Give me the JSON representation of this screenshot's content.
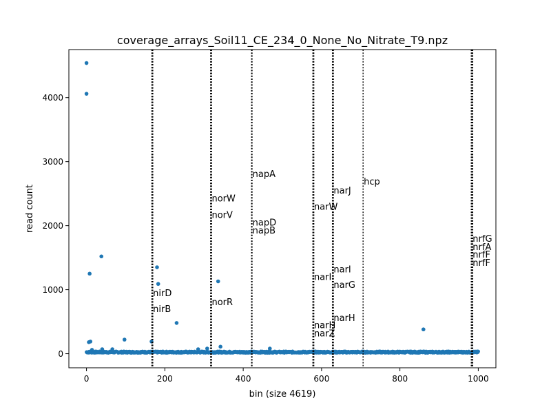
{
  "chart_data": {
    "type": "scatter",
    "title": "coverage_arrays_Soil11_CE_234_0_None_No_Nitrate_T9.npz",
    "xlabel": "bin (size 4619)",
    "ylabel": "read count",
    "xlim": [
      -45,
      1045
    ],
    "ylim": [
      -220,
      4750
    ],
    "xticks": [
      0,
      200,
      400,
      600,
      800,
      1000
    ],
    "yticks": [
      0,
      1000,
      2000,
      3000,
      4000
    ],
    "grid": false,
    "marker_color": "#1f77b4",
    "baseline": {
      "x_start": 0,
      "x_end": 1000,
      "y_mean": 25,
      "y_jitter": 12
    },
    "points": [
      [
        0,
        4540
      ],
      [
        0,
        4060
      ],
      [
        6,
        180
      ],
      [
        8,
        1250
      ],
      [
        10,
        190
      ],
      [
        14,
        60
      ],
      [
        38,
        1520
      ],
      [
        40,
        70
      ],
      [
        66,
        70
      ],
      [
        97,
        220
      ],
      [
        166,
        190
      ],
      [
        180,
        1350
      ],
      [
        183,
        1090
      ],
      [
        230,
        480
      ],
      [
        285,
        70
      ],
      [
        308,
        80
      ],
      [
        336,
        1130
      ],
      [
        342,
        110
      ],
      [
        468,
        80
      ],
      [
        860,
        380
      ]
    ],
    "markers": [
      {
        "x": 168,
        "lines": 3
      },
      {
        "x": 318,
        "lines": 3
      },
      {
        "x": 422,
        "lines": 2
      },
      {
        "x": 579,
        "lines": 3
      },
      {
        "x": 629,
        "lines": 3
      },
      {
        "x": 706,
        "lines": 1
      },
      {
        "x": 984,
        "lines": 4
      }
    ],
    "annotations": [
      {
        "text": "nirD",
        "x": 168,
        "y": 900
      },
      {
        "text": "nirB",
        "x": 168,
        "y": 650
      },
      {
        "text": "norW",
        "x": 318,
        "y": 2380
      },
      {
        "text": "norV",
        "x": 318,
        "y": 2120
      },
      {
        "text": "norR",
        "x": 318,
        "y": 760
      },
      {
        "text": "napA",
        "x": 422,
        "y": 2760
      },
      {
        "text": "napD",
        "x": 422,
        "y": 2000
      },
      {
        "text": "napB",
        "x": 422,
        "y": 1880
      },
      {
        "text": "narW",
        "x": 579,
        "y": 2250
      },
      {
        "text": "narI",
        "x": 579,
        "y": 1150
      },
      {
        "text": "narH",
        "x": 579,
        "y": 400
      },
      {
        "text": "narZ",
        "x": 579,
        "y": 270
      },
      {
        "text": "narJ",
        "x": 629,
        "y": 2500
      },
      {
        "text": "narI",
        "x": 629,
        "y": 1270
      },
      {
        "text": "narG",
        "x": 629,
        "y": 1030
      },
      {
        "text": "narH",
        "x": 629,
        "y": 510
      },
      {
        "text": "hcp",
        "x": 706,
        "y": 2640
      },
      {
        "text": "nrfG",
        "x": 984,
        "y": 1750
      },
      {
        "text": "nrfA",
        "x": 984,
        "y": 1620
      },
      {
        "text": "nrfF",
        "x": 984,
        "y": 1500
      },
      {
        "text": "nrfF",
        "x": 984,
        "y": 1370
      }
    ]
  }
}
